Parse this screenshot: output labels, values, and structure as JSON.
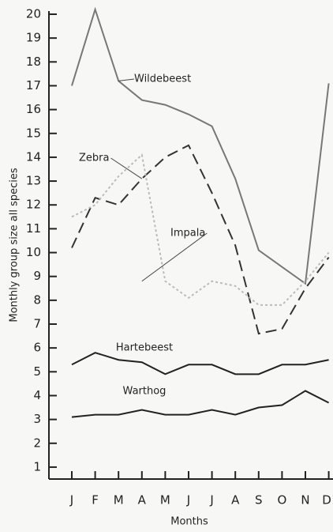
{
  "chart_data": {
    "type": "line",
    "categories": [
      "J",
      "F",
      "M",
      "A",
      "M",
      "J",
      "J",
      "A",
      "S",
      "O",
      "N",
      "D"
    ],
    "series": [
      {
        "name": "Wildebeest",
        "color": "#777777",
        "dash": "solid",
        "values": [
          17,
          20.2,
          17.2,
          16.4,
          16.2,
          15.8,
          15.3,
          13.1,
          10.1,
          9.4,
          8.7,
          17.1
        ]
      },
      {
        "name": "Zebra",
        "color": "#333333",
        "dash": "dashed",
        "values": [
          10.2,
          12.3,
          12,
          13.1,
          14,
          14.5,
          12.5,
          10.3,
          6.6,
          6.8,
          8.5,
          9.8
        ]
      },
      {
        "name": "Impala",
        "color": "#bbbbbb",
        "dash": "dotted",
        "values": [
          11.5,
          12,
          13.2,
          14.1,
          8.8,
          8.1,
          8.8,
          8.6,
          7.8,
          7.8,
          8.8,
          10
        ]
      },
      {
        "name": "Hartebeest",
        "color": "#222222",
        "dash": "solid",
        "values": [
          5.3,
          5.8,
          5.5,
          5.4,
          4.9,
          5.3,
          5.3,
          4.9,
          4.9,
          5.3,
          5.3,
          5.5
        ]
      },
      {
        "name": "Warthog",
        "color": "#222222",
        "dash": "solid",
        "values": [
          3.1,
          3.2,
          3.2,
          3.4,
          3.2,
          3.2,
          3.4,
          3.2,
          3.5,
          3.6,
          4.2,
          3.7
        ]
      }
    ],
    "ylim": [
      0.5,
      20
    ],
    "yticks": [
      1,
      2,
      3,
      4,
      5,
      6,
      7,
      8,
      9,
      10,
      11,
      12,
      13,
      14,
      15,
      16,
      17,
      18,
      19,
      20
    ],
    "y_label": "Monthly group size all species",
    "x_label": "Months"
  }
}
